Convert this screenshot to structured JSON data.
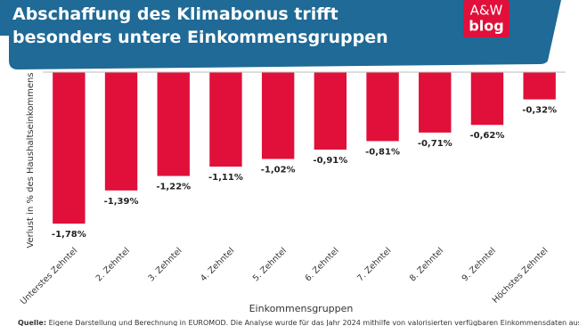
{
  "chart_data": {
    "type": "bar",
    "title": "Abschaffung des Klimabonus trifft besonders untere Einkommensgruppen",
    "x_label": "Einkommensgruppen",
    "y_label": "Verlust in % des Haushaltseinkommens",
    "categories": [
      "Unterstes Zehntel",
      "2. Zehntel",
      "3. Zehntel",
      "4. Zehntel",
      "5. Zehntel",
      "6. Zehntel",
      "7. Zehntel",
      "8. Zehntel",
      "9. Zehntel",
      "Höchstes Zehntel"
    ],
    "values": [
      -1.78,
      -1.39,
      -1.22,
      -1.11,
      -1.02,
      -0.91,
      -0.81,
      -0.71,
      -0.62,
      -0.32
    ],
    "value_labels": [
      "-1,78%",
      "-1,39%",
      "-1,22%",
      "-1,11%",
      "-1,02%",
      "-0,91%",
      "-0,81%",
      "-0,71%",
      "-0,62%",
      "-0,32%"
    ],
    "color": "#e0103a",
    "ylim": [
      -1.8,
      0
    ]
  },
  "logo": {
    "top": "A&W",
    "bottom": "blog"
  },
  "source": {
    "label": "Quelle:",
    "text": "Eigene Darstellung und Berechnung in EUROMOD. Die Analyse wurde für das Jahr 2024 mithilfe von valorisierten verfügbaren Einkommensdaten aus dem EU-SILC"
  }
}
